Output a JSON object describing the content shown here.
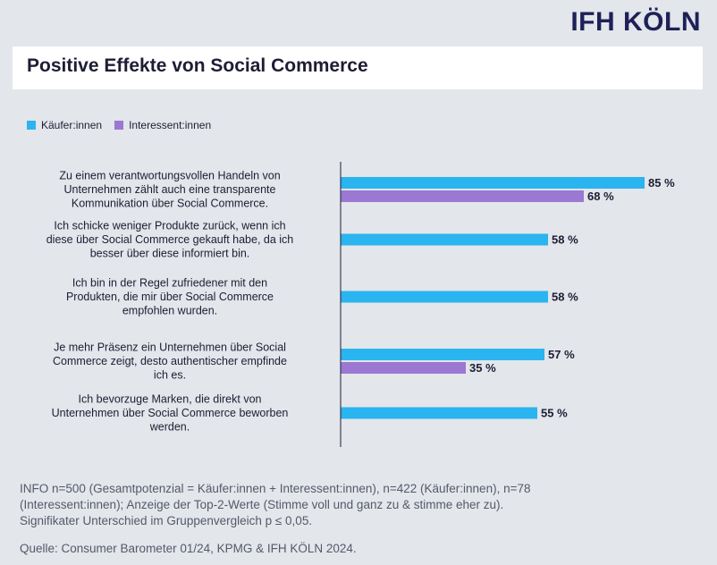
{
  "logo": "IFH KÖLN",
  "colors": {
    "kaeufer": "#2ab4f0",
    "interessent": "#9b78d2",
    "axis": "#1d1d35"
  },
  "chart_data": {
    "type": "bar",
    "orientation": "horizontal",
    "title": "Positive Effekte von Social Commerce",
    "legend_position": "top-left",
    "grid": false,
    "xlim": [
      0,
      100
    ],
    "value_suffix": " %",
    "categories": [
      [
        "Zu einem verantwortungsvollen Handeln von",
        "Unternehmen zählt auch eine transparente",
        "Kommunikation über Social Commerce."
      ],
      [
        "Ich schicke weniger Produkte zurück, wenn ich",
        "diese über Social Commerce gekauft habe, da ich",
        "besser über diese informiert bin."
      ],
      [
        "Ich bin in der Regel zufriedener mit den",
        "Produkten, die mir über Social Commerce",
        "empfohlen wurden."
      ],
      [
        "Je mehr Präsenz ein Unternehmen über Social",
        "Commerce zeigt, desto authentischer empfinde",
        "ich es."
      ],
      [
        "Ich bevorzuge Marken, die direkt von",
        "Unternehmen über Social Commerce beworben",
        "werden."
      ]
    ],
    "series": [
      {
        "name": "Käufer:innen",
        "color": "#2ab4f0",
        "values": [
          85,
          58,
          58,
          57,
          55
        ]
      },
      {
        "name": "Interessent:innen",
        "color": "#9b78d2",
        "values": [
          68,
          null,
          null,
          35,
          null
        ]
      }
    ]
  },
  "footnote": [
    "INFO n=500 (Gesamtpotenzial = Käufer:innen + Interessent:innen), n=422 (Käufer:innen), n=78",
    "(Interessent:innen); Anzeige der Top-2-Werte (Stimme voll und ganz zu & stimme eher zu).",
    "Signifikater Unterschied im Gruppenvergleich p ≤ 0,05."
  ],
  "source": "Quelle: Consumer Barometer 01/24, KPMG & IFH KÖLN 2024."
}
